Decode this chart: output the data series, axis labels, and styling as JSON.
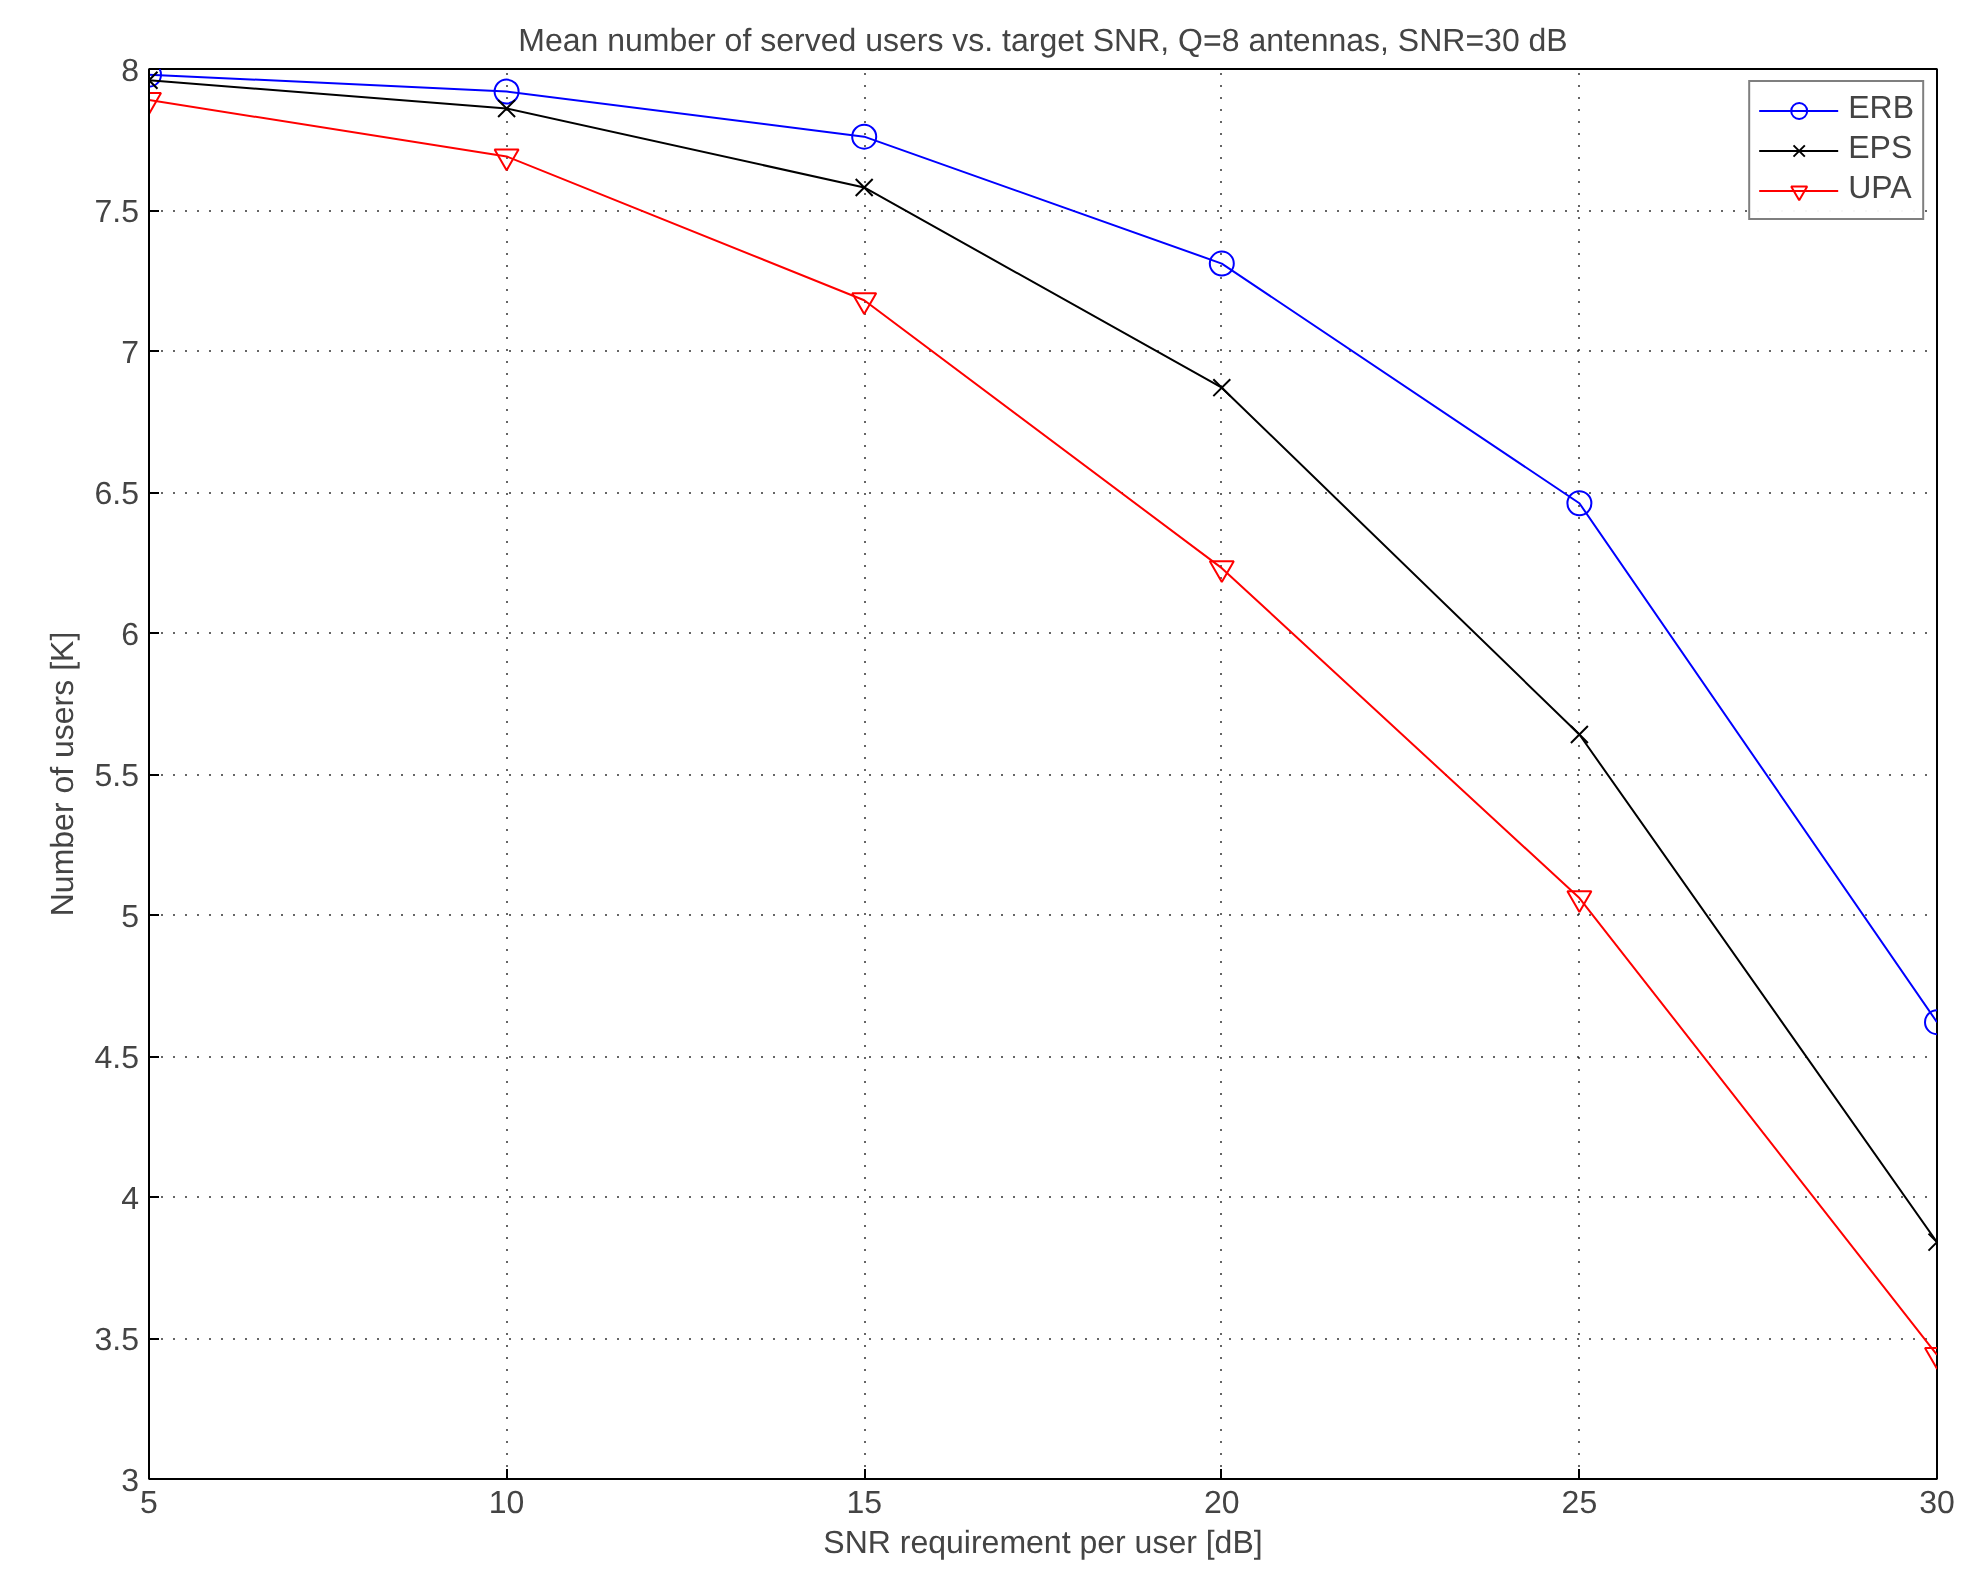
{
  "chart_data": {
    "type": "line",
    "title": "Mean number of served users vs. target SNR, Q=8 antennas, SNR=30 dB",
    "xlabel": "SNR requirement per user [dB]",
    "ylabel": "Number of users [K]",
    "x": [
      5,
      10,
      15,
      20,
      25,
      30
    ],
    "series": [
      {
        "name": "ERB",
        "color": "#0000ff",
        "marker": "circle",
        "values": [
          7.98,
          7.92,
          7.76,
          7.31,
          6.46,
          4.62
        ]
      },
      {
        "name": "EPS",
        "color": "#000000",
        "marker": "cross",
        "values": [
          7.96,
          7.86,
          7.58,
          6.87,
          5.64,
          3.84
        ]
      },
      {
        "name": "UPA",
        "color": "#ff0000",
        "marker": "triangle",
        "values": [
          7.89,
          7.69,
          7.18,
          6.23,
          5.06,
          3.44
        ]
      }
    ],
    "xlim": [
      5,
      30
    ],
    "xticks": [
      5,
      10,
      15,
      20,
      25,
      30
    ],
    "ylim": [
      3,
      8
    ],
    "yticks": [
      3,
      3.5,
      4,
      4.5,
      5,
      5.5,
      6,
      6.5,
      7,
      7.5,
      8
    ],
    "grid": true,
    "legend": "top right",
    "line_style": "solid"
  }
}
